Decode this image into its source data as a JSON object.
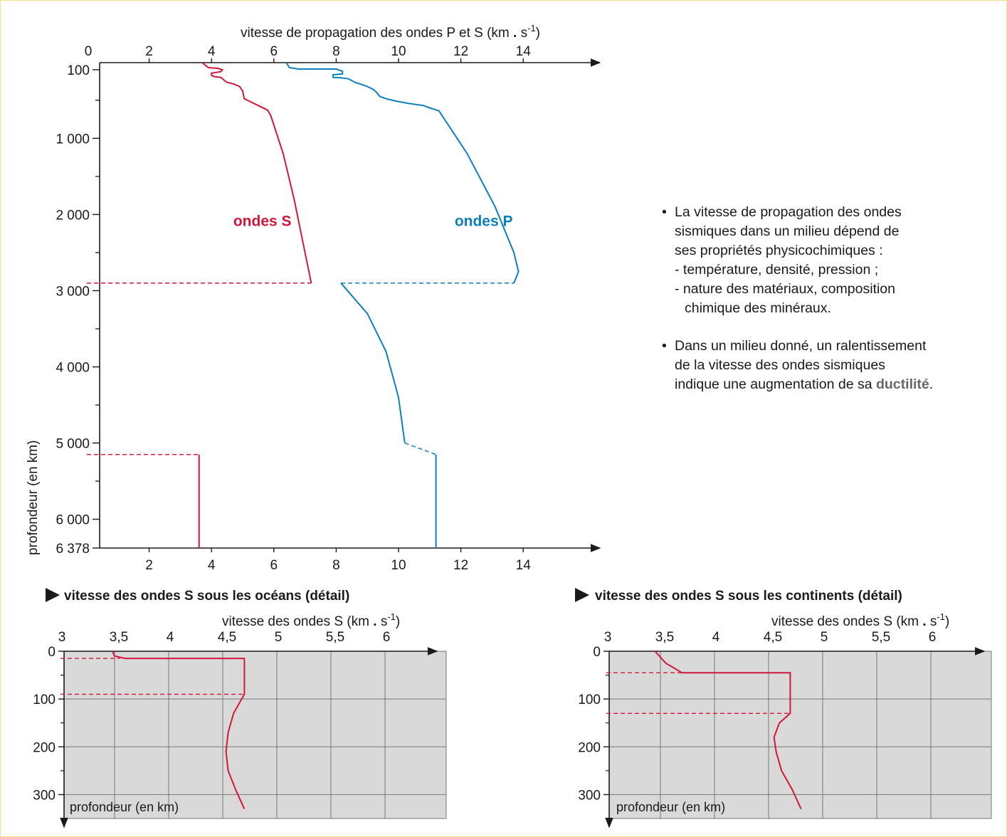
{
  "chart_data": [
    {
      "type": "line",
      "title": "",
      "xlabel": "vitesse de propagation des ondes P et S (km . s-1)",
      "xlabel_parts": {
        "main": "vitesse de propagation des ondes P et S (km",
        "dot": " . ",
        "unit": "s",
        "sup": "-1",
        "close": ")"
      },
      "ylabel": "profondeur (en km)",
      "xlim": [
        0,
        16
      ],
      "ylim": [
        0,
        6378
      ],
      "x_ticks_top": [
        "0",
        "2",
        "4",
        "6",
        "8",
        "10",
        "12",
        "14"
      ],
      "x_ticks_bottom": [
        "2",
        "4",
        "6",
        "8",
        "10",
        "12",
        "14"
      ],
      "y_ticks": [
        {
          "value": 100,
          "label": "100"
        },
        {
          "value": 1000,
          "label": "1 000"
        },
        {
          "value": 2000,
          "label": "2 000"
        },
        {
          "value": 3000,
          "label": "3 000"
        },
        {
          "value": 4000,
          "label": "4 000"
        },
        {
          "value": 5000,
          "label": "5 000"
        },
        {
          "value": 6000,
          "label": "6 000"
        },
        {
          "value": 6378,
          "label": "6 378"
        }
      ],
      "series": [
        {
          "name": "ondes S",
          "color": "#d3173a",
          "segments": [
            [
              [
                3.7,
                0
              ],
              [
                3.9,
                70
              ],
              [
                4.2,
                80
              ],
              [
                4.35,
                100
              ],
              [
                4.3,
                125
              ],
              [
                4.0,
                145
              ],
              [
                4.0,
                175
              ],
              [
                4.1,
                190
              ],
              [
                4.3,
                200
              ],
              [
                4.4,
                235
              ],
              [
                4.5,
                265
              ],
              [
                4.7,
                285
              ],
              [
                4.9,
                320
              ],
              [
                5.0,
                380
              ],
              [
                5.05,
                480
              ],
              [
                5.3,
                530
              ],
              [
                5.5,
                570
              ],
              [
                5.8,
                630
              ],
              [
                5.9,
                700
              ],
              [
                6.3,
                1200
              ],
              [
                6.65,
                1800
              ],
              [
                6.95,
                2400
              ],
              [
                7.2,
                2900
              ]
            ],
            [
              [
                3.6,
                5150
              ],
              [
                3.6,
                6378
              ]
            ]
          ],
          "dashed": [
            [
              [
                0,
                2900
              ],
              [
                7.2,
                2900
              ]
            ],
            [
              [
                0,
                5150
              ],
              [
                3.6,
                5150
              ]
            ]
          ],
          "label_at": [
            4.7,
            2150
          ]
        },
        {
          "name": "ondes P",
          "color": "#0c7fbd",
          "segments": [
            [
              [
                6.4,
                0
              ],
              [
                6.5,
                70
              ],
              [
                6.8,
                90
              ],
              [
                8.0,
                90
              ],
              [
                8.2,
                120
              ],
              [
                8.2,
                155
              ],
              [
                7.9,
                165
              ],
              [
                7.9,
                200
              ],
              [
                8.15,
                205
              ],
              [
                8.4,
                220
              ],
              [
                8.6,
                265
              ],
              [
                8.8,
                290
              ],
              [
                9.0,
                320
              ],
              [
                9.2,
                360
              ],
              [
                9.3,
                400
              ],
              [
                9.4,
                450
              ],
              [
                9.6,
                480
              ],
              [
                9.9,
                510
              ],
              [
                10.3,
                540
              ],
              [
                10.8,
                570
              ],
              [
                11.0,
                600
              ],
              [
                11.3,
                640
              ],
              [
                12.2,
                1200
              ],
              [
                13.1,
                1900
              ],
              [
                13.7,
                2500
              ],
              [
                13.85,
                2750
              ],
              [
                13.7,
                2900
              ]
            ],
            [
              [
                8.15,
                2900
              ],
              [
                9.0,
                3300
              ],
              [
                9.6,
                3800
              ],
              [
                10.0,
                4400
              ],
              [
                10.2,
                5000
              ]
            ],
            [
              [
                11.2,
                5150
              ],
              [
                11.2,
                6378
              ]
            ]
          ],
          "dashed": [
            [
              [
                8.15,
                2900
              ],
              [
                13.7,
                2900
              ]
            ],
            [
              [
                10.2,
                5000
              ],
              [
                11.2,
                5150
              ]
            ]
          ],
          "label_at": [
            11.8,
            2150
          ]
        }
      ]
    },
    {
      "type": "line",
      "title": "vitesse des ondes S sous les océans (détail)",
      "xlabel": "vitesse des ondes S (km . s-1)",
      "xlabel_parts": {
        "main": "vitesse des ondes S (km",
        "dot": " . ",
        "unit": "s",
        "sup": "-1",
        "close": ")"
      },
      "ylabel": "profondeur (en km)",
      "xlim": [
        3,
        6.5
      ],
      "ylim": [
        0,
        350
      ],
      "x_ticks": [
        "3",
        "3,5",
        "4",
        "4,5",
        "5",
        "5,5",
        "6"
      ],
      "y_ticks": [
        "0",
        "100",
        "200",
        "300"
      ],
      "grid": true,
      "series": [
        {
          "name": "",
          "color": "#d3173a",
          "values": [
            [
              3.48,
              0
            ],
            [
              3.5,
              10
            ],
            [
              3.6,
              15
            ],
            [
              4.7,
              15
            ],
            [
              4.7,
              30
            ],
            [
              4.7,
              60
            ],
            [
              4.7,
              90
            ],
            [
              4.6,
              130
            ],
            [
              4.55,
              170
            ],
            [
              4.53,
              210
            ],
            [
              4.55,
              250
            ],
            [
              4.62,
              290
            ],
            [
              4.7,
              330
            ]
          ],
          "dashed": [
            [
              [
                3,
                15
              ],
              [
                3.55,
                15
              ]
            ],
            [
              [
                3,
                90
              ],
              [
                4.7,
                90
              ]
            ]
          ]
        }
      ]
    },
    {
      "type": "line",
      "title": "vitesse des ondes S sous les continents (détail)",
      "xlabel": "vitesse des ondes S (km . s-1)",
      "xlabel_parts": {
        "main": "vitesse des ondes S (km",
        "dot": " . ",
        "unit": "s",
        "sup": "-1",
        "close": ")"
      },
      "ylabel": "profondeur (en km)",
      "xlim": [
        3,
        6.5
      ],
      "ylim": [
        0,
        350
      ],
      "x_ticks": [
        "3",
        "3,5",
        "4",
        "4,5",
        "5",
        "5,5",
        "6"
      ],
      "y_ticks": [
        "0",
        "100",
        "200",
        "300"
      ],
      "grid": true,
      "series": [
        {
          "name": "",
          "color": "#d3173a",
          "values": [
            [
              3.45,
              0
            ],
            [
              3.55,
              25
            ],
            [
              3.7,
              45
            ],
            [
              4.7,
              45
            ],
            [
              4.7,
              80
            ],
            [
              4.7,
              130
            ],
            [
              4.6,
              150
            ],
            [
              4.55,
              180
            ],
            [
              4.57,
              210
            ],
            [
              4.62,
              250
            ],
            [
              4.72,
              290
            ],
            [
              4.8,
              330
            ]
          ],
          "dashed": [
            [
              [
                3,
                45
              ],
              [
                3.7,
                45
              ]
            ],
            [
              [
                3,
                130
              ],
              [
                4.7,
                130
              ]
            ]
          ]
        }
      ]
    }
  ],
  "notes": {
    "p1_line1": "La vitesse de propagation des ondes",
    "p1_line2": "sismiques dans un milieu dépend de",
    "p1_line3": "ses propriétés physicochimiques :",
    "p1_line4": "- température, densité, pression ;",
    "p1_line5": "- nature des matériaux, composition",
    "p1_line6": "chimique des minéraux.",
    "p2_line1": "Dans un milieu donné, un ralentissement",
    "p2_line2": "de la vitesse des ondes sismiques",
    "p2_line3_pre": "indique une augmentation de sa ",
    "p2_keyword": "ductilité",
    "p2_line3_post": "."
  }
}
